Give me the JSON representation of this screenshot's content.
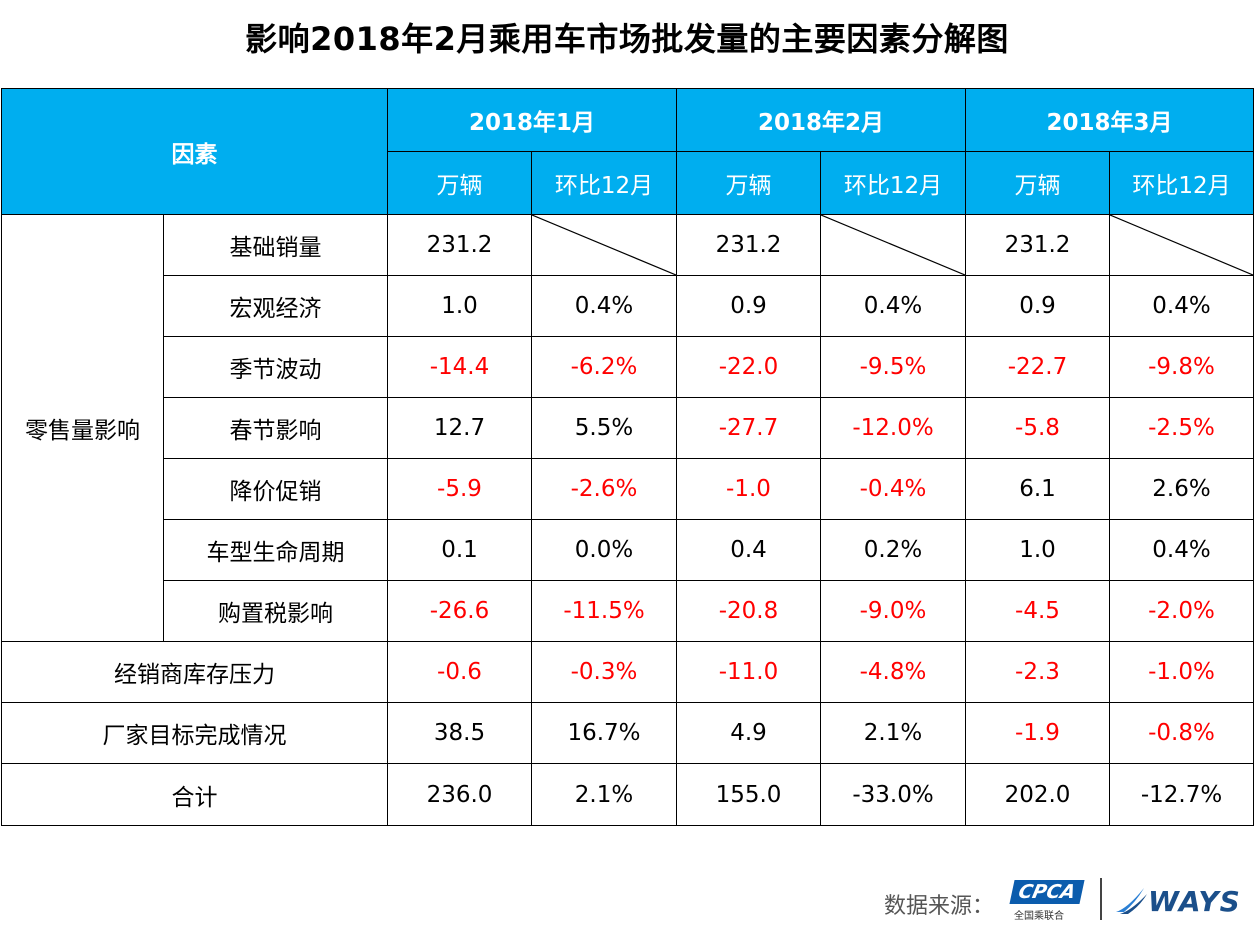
{
  "title": "影响2018年2月乘用车市场批发量的主要因素分解图",
  "header": {
    "factor": "因素",
    "months": [
      "2018年1月",
      "2018年2月",
      "2018年3月"
    ],
    "unit": "万辆",
    "mom": "环比12月"
  },
  "group_label": "零售量影响",
  "rows": [
    {
      "name": "基础销量",
      "values": [
        "231.2",
        "",
        "231.2",
        "",
        "231.2",
        ""
      ]
    },
    {
      "name": "宏观经济",
      "values": [
        "1.0",
        "0.4%",
        "0.9",
        "0.4%",
        "0.9",
        "0.4%"
      ]
    },
    {
      "name": "季节波动",
      "values": [
        "-14.4",
        "-6.2%",
        "-22.0",
        "-9.5%",
        "-22.7",
        "-9.8%"
      ]
    },
    {
      "name": "春节影响",
      "values": [
        "12.7",
        "5.5%",
        "-27.7",
        "-12.0%",
        "-5.8",
        "-2.5%"
      ]
    },
    {
      "name": "降价促销",
      "values": [
        "-5.9",
        "-2.6%",
        "-1.0",
        "-0.4%",
        "6.1",
        "2.6%"
      ]
    },
    {
      "name": "车型生命周期",
      "values": [
        "0.1",
        "0.0%",
        "0.4",
        "0.2%",
        "1.0",
        "0.4%"
      ]
    },
    {
      "name": "购置税影响",
      "values": [
        "-26.6",
        "-11.5%",
        "-20.8",
        "-9.0%",
        "-4.5",
        "-2.0%"
      ]
    },
    {
      "name": "经销商库存压力",
      "values": [
        "-0.6",
        "-0.3%",
        "-11.0",
        "-4.8%",
        "-2.3",
        "-1.0%"
      ]
    },
    {
      "name": "厂家目标完成情况",
      "values": [
        "38.5",
        "16.7%",
        "4.9",
        "2.1%",
        "-1.9",
        "-0.8%"
      ]
    },
    {
      "name": "合计",
      "values": [
        "236.0",
        "2.1%",
        "155.0",
        "-33.0%",
        "202.0",
        "-12.7%"
      ]
    }
  ],
  "footer": {
    "source_label": "数据来源：",
    "cpca_logo": "CPCA",
    "cpca_sub": "全国乘联合",
    "ways_logo": "WAYS"
  },
  "colors": {
    "header_bg": "#00aeef",
    "negative": "#ff0000"
  },
  "chart_data": {
    "type": "table",
    "title": "影响2018年2月乘用车市场批发量的主要因素分解图",
    "columns": [
      "2018年1月 万辆",
      "2018年1月 环比12月",
      "2018年2月 万辆",
      "2018年2月 环比12月",
      "2018年3月 万辆",
      "2018年3月 环比12月"
    ],
    "rows": [
      "基础销量",
      "宏观经济",
      "季节波动",
      "春节影响",
      "降价促销",
      "车型生命周期",
      "购置税影响",
      "经销商库存压力",
      "厂家目标完成情况",
      "合计"
    ]
  }
}
